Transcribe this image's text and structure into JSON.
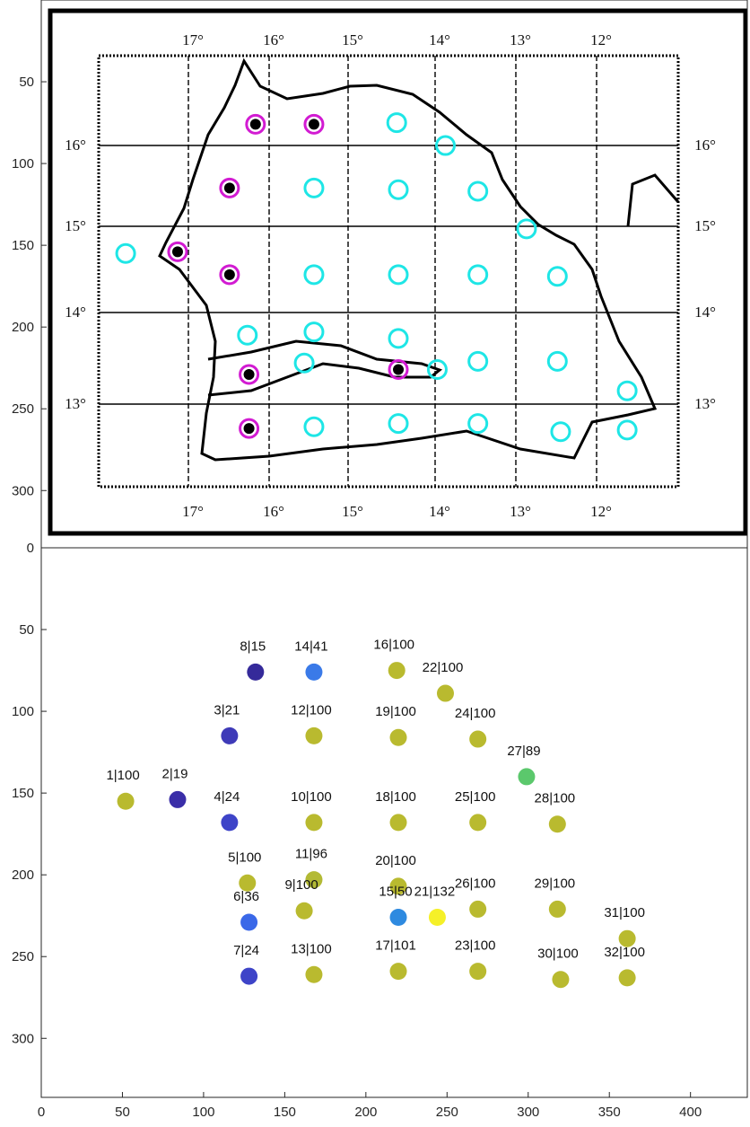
{
  "chart_data": [
    {
      "type": "image",
      "description_source": "scanned map with station markers",
      "axes": {
        "ylim": [
          0,
          335
        ],
        "yticks": [
          50,
          100,
          150,
          200,
          250,
          300
        ]
      },
      "lon_top_labels": [
        "17°",
        "16°",
        "15°",
        "14°",
        "13°",
        "12°"
      ],
      "lon_bottom_labels": [
        "17°",
        "16°",
        "15°",
        "14°",
        "13°",
        "12°"
      ],
      "lat_left_labels": [
        "16°",
        "15°",
        "14°",
        "13°"
      ],
      "lat_right_labels": [
        "16°",
        "15°",
        "14°",
        "13°"
      ],
      "cyan_markers": [
        {
          "x": 52,
          "y": 155
        },
        {
          "x": 219,
          "y": 75
        },
        {
          "x": 249,
          "y": 89
        },
        {
          "x": 168,
          "y": 115
        },
        {
          "x": 220,
          "y": 116
        },
        {
          "x": 269,
          "y": 117
        },
        {
          "x": 299,
          "y": 140
        },
        {
          "x": 168,
          "y": 168
        },
        {
          "x": 220,
          "y": 168
        },
        {
          "x": 269,
          "y": 168
        },
        {
          "x": 318,
          "y": 169
        },
        {
          "x": 127,
          "y": 205
        },
        {
          "x": 168,
          "y": 203
        },
        {
          "x": 220,
          "y": 207
        },
        {
          "x": 162,
          "y": 222
        },
        {
          "x": 244,
          "y": 226
        },
        {
          "x": 269,
          "y": 221
        },
        {
          "x": 318,
          "y": 221
        },
        {
          "x": 361,
          "y": 239
        },
        {
          "x": 168,
          "y": 261
        },
        {
          "x": 220,
          "y": 259
        },
        {
          "x": 269,
          "y": 259
        },
        {
          "x": 320,
          "y": 264
        },
        {
          "x": 361,
          "y": 263
        }
      ],
      "magenta_markers": [
        {
          "x": 132,
          "y": 76
        },
        {
          "x": 168,
          "y": 76
        },
        {
          "x": 116,
          "y": 115
        },
        {
          "x": 84,
          "y": 154
        },
        {
          "x": 116,
          "y": 168
        },
        {
          "x": 128,
          "y": 229
        },
        {
          "x": 220,
          "y": 226
        },
        {
          "x": 128,
          "y": 262
        }
      ]
    },
    {
      "type": "scatter",
      "xlim": [
        0,
        435
      ],
      "ylim": [
        0,
        335
      ],
      "y_reversed": true,
      "xticks": [
        0,
        50,
        100,
        150,
        200,
        250,
        300,
        350,
        400
      ],
      "yticks": [
        50,
        100,
        150,
        200,
        250,
        300
      ],
      "colors": {
        "yellow_green": "#b9ba2f",
        "bright_yellow": "#f5f028",
        "green": "#5bc86c",
        "blue": "#3a7ae8",
        "mid_blue": "#3e52d6",
        "dark_blue": "#3a2ea8"
      },
      "points": [
        {
          "label": "1|100",
          "x": 52,
          "y": 155,
          "color": "#b9ba2f"
        },
        {
          "label": "2|19",
          "x": 84,
          "y": 154,
          "color": "#3a2ea8"
        },
        {
          "label": "3|21",
          "x": 116,
          "y": 115,
          "color": "#3e3ab8"
        },
        {
          "label": "4|24",
          "x": 116,
          "y": 168,
          "color": "#3e44c8"
        },
        {
          "label": "5|100",
          "x": 127,
          "y": 205,
          "color": "#b9ba2f"
        },
        {
          "label": "6|36",
          "x": 128,
          "y": 229,
          "color": "#3a68e8"
        },
        {
          "label": "7|24",
          "x": 128,
          "y": 262,
          "color": "#3e44c8"
        },
        {
          "label": "8|15",
          "x": 132,
          "y": 76,
          "color": "#352a9a"
        },
        {
          "label": "9|100",
          "x": 162,
          "y": 222,
          "color": "#b9ba2f"
        },
        {
          "label": "10|100",
          "x": 168,
          "y": 168,
          "color": "#b9ba2f"
        },
        {
          "label": "11|96",
          "x": 168,
          "y": 203,
          "color": "#b3ba35"
        },
        {
          "label": "12|100",
          "x": 168,
          "y": 115,
          "color": "#b9ba2f"
        },
        {
          "label": "13|100",
          "x": 168,
          "y": 261,
          "color": "#b9ba2f"
        },
        {
          "label": "14|41",
          "x": 168,
          "y": 76,
          "color": "#3a7ae8"
        },
        {
          "label": "15|50",
          "x": 220,
          "y": 226,
          "color": "#2e8ae0"
        },
        {
          "label": "16|100",
          "x": 219,
          "y": 75,
          "color": "#b9ba2f"
        },
        {
          "label": "17|101",
          "x": 220,
          "y": 259,
          "color": "#b9ba2f"
        },
        {
          "label": "18|100",
          "x": 220,
          "y": 168,
          "color": "#b9ba2f"
        },
        {
          "label": "19|100",
          "x": 220,
          "y": 116,
          "color": "#b9ba2f"
        },
        {
          "label": "20|100",
          "x": 220,
          "y": 207,
          "color": "#b9ba2f"
        },
        {
          "label": "21|132",
          "x": 244,
          "y": 226,
          "color": "#f5f028"
        },
        {
          "label": "22|100",
          "x": 249,
          "y": 89,
          "color": "#b9ba2f"
        },
        {
          "label": "23|100",
          "x": 269,
          "y": 259,
          "color": "#b9ba2f"
        },
        {
          "label": "24|100",
          "x": 269,
          "y": 117,
          "color": "#b9ba2f"
        },
        {
          "label": "25|100",
          "x": 269,
          "y": 168,
          "color": "#b9ba2f"
        },
        {
          "label": "26|100",
          "x": 269,
          "y": 221,
          "color": "#b9ba2f"
        },
        {
          "label": "27|89",
          "x": 299,
          "y": 140,
          "color": "#5bc86c"
        },
        {
          "label": "28|100",
          "x": 318,
          "y": 169,
          "color": "#b9ba2f"
        },
        {
          "label": "29|100",
          "x": 318,
          "y": 221,
          "color": "#b9ba2f"
        },
        {
          "label": "30|100",
          "x": 320,
          "y": 264,
          "color": "#b9ba2f"
        },
        {
          "label": "31|100",
          "x": 361,
          "y": 239,
          "color": "#b9ba2f"
        },
        {
          "label": "32|100",
          "x": 361,
          "y": 263,
          "color": "#b9ba2f"
        }
      ]
    }
  ]
}
